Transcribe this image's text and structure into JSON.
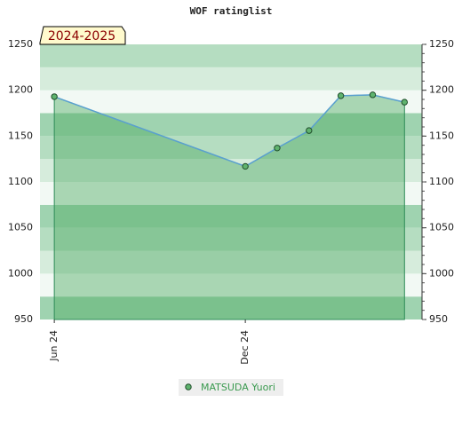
{
  "chart_data": {
    "type": "line",
    "title": "WOF ratinglist",
    "subtitle": "2024-2025",
    "x": [
      0,
      6,
      7,
      8,
      9,
      10,
      11
    ],
    "xlim": [
      -0.45,
      11.55
    ],
    "xticks": [
      {
        "value": 0,
        "label": "Jun 24"
      },
      {
        "value": 6,
        "label": "Dec 24"
      }
    ],
    "series": [
      {
        "name": "MATSUDA Yuori",
        "color": "#5aa0d0",
        "values": [
          1193,
          1117,
          1137,
          1156,
          1194,
          1195,
          1187
        ]
      }
    ],
    "ylim": [
      950,
      1250
    ],
    "yticks": [
      950,
      1000,
      1050,
      1100,
      1150,
      1200,
      1250
    ]
  }
}
